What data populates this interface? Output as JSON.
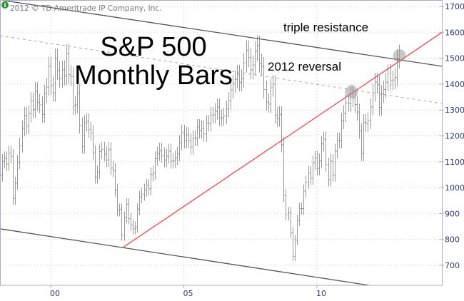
{
  "copyright": "2012 © TD Ameritrade IP Company, Inc.",
  "chart_data": {
    "type": "ohlc-bar",
    "title_lines": [
      "S&P 500",
      "Monthly Bars"
    ],
    "start": "1998-01",
    "frequency": "monthly",
    "closes": [
      980,
      1049,
      1102,
      1112,
      1091,
      1134,
      1121,
      958,
      1017,
      1099,
      1164,
      1229,
      1280,
      1238,
      1286,
      1335,
      1302,
      1373,
      1329,
      1320,
      1283,
      1363,
      1389,
      1469,
      1394,
      1366,
      1499,
      1452,
      1421,
      1455,
      1431,
      1518,
      1437,
      1429,
      1315,
      1320,
      1366,
      1240,
      1160,
      1249,
      1256,
      1224,
      1211,
      1134,
      1041,
      1060,
      1139,
      1148,
      1130,
      1107,
      1147,
      1076,
      1067,
      990,
      912,
      916,
      815,
      886,
      936,
      880,
      856,
      841,
      848,
      917,
      964,
      975,
      990,
      1008,
      996,
      1051,
      1058,
      1112,
      1131,
      1145,
      1126,
      1107,
      1121,
      1141,
      1102,
      1104,
      1115,
      1130,
      1174,
      1212,
      1181,
      1204,
      1181,
      1157,
      1191,
      1191,
      1234,
      1220,
      1229,
      1207,
      1249,
      1248,
      1280,
      1281,
      1295,
      1311,
      1270,
      1270,
      1277,
      1304,
      1336,
      1378,
      1401,
      1418,
      1438,
      1407,
      1421,
      1482,
      1531,
      1503,
      1455,
      1474,
      1527,
      1549,
      1481,
      1468,
      1379,
      1331,
      1323,
      1386,
      1400,
      1280,
      1267,
      1283,
      1166,
      969,
      896,
      903,
      826,
      735,
      798,
      873,
      919,
      919,
      987,
      1021,
      1057,
      1036,
      1096,
      1115,
      1074,
      1104,
      1169,
      1187,
      1089,
      1031,
      1102,
      1049,
      1141,
      1183,
      1181,
      1258,
      1286,
      1327,
      1326,
      1364,
      1345,
      1321,
      1292,
      1219,
      1131,
      1253,
      1247,
      1258,
      1312,
      1366,
      1408,
      1398,
      1310,
      1362,
      1379,
      1407,
      1441,
      1412,
      1416,
      1426,
      1498,
      1515
    ],
    "x_range": [
      1998.1,
      2014.7
    ],
    "ylim": [
      625,
      1722
    ],
    "y_ticks": [
      "1700",
      "1600",
      "1500",
      "1400",
      "1300",
      "1200",
      "1100",
      "1000",
      "900",
      "800",
      "700"
    ],
    "x_ticks": [
      {
        "label": "00",
        "year": 2000
      },
      {
        "label": "05",
        "year": 2005
      },
      {
        "label": "10",
        "year": 2010
      }
    ],
    "grid": true,
    "trendlines": [
      {
        "name": "upper-channel",
        "style": "solid",
        "color": "#555555",
        "from": [
          1998.1,
          1725
        ],
        "to": [
          2014.7,
          1469
        ]
      },
      {
        "name": "lower-channel",
        "style": "solid",
        "color": "#555555",
        "from": [
          1998.1,
          841
        ],
        "to": [
          2011.95,
          623
        ]
      },
      {
        "name": "dashed-resistance",
        "style": "dashed",
        "color": "#aaaaaa",
        "from": [
          1998.1,
          1587
        ],
        "to": [
          2014.7,
          1325
        ]
      },
      {
        "name": "red-support",
        "style": "solid",
        "color": "#ff4444",
        "from": [
          2002.7,
          768
        ],
        "to": [
          2014.7,
          1600
        ]
      }
    ],
    "annotations": [
      {
        "text": "2012 reversal",
        "year": 2011.3,
        "value": 1370
      },
      {
        "text": "triple resistance",
        "year": 2013.1,
        "value": 1510
      }
    ]
  }
}
